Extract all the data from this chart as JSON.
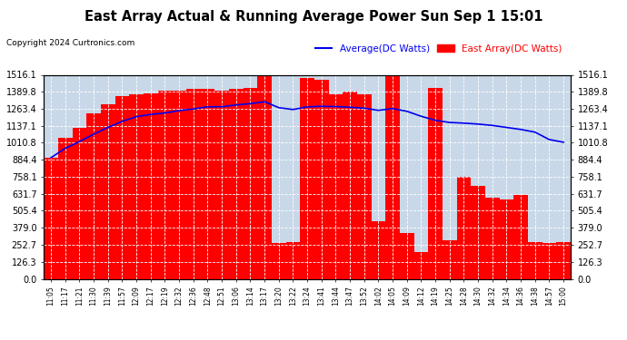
{
  "title": "East Array Actual & Running Average Power Sun Sep 1 15:01",
  "copyright": "Copyright 2024 Curtronics.com",
  "legend_avg": "Average(DC Watts)",
  "legend_east": "East Array(DC Watts)",
  "yticks": [
    0.0,
    126.3,
    252.7,
    379.0,
    505.4,
    631.7,
    758.1,
    884.4,
    1010.8,
    1137.1,
    1263.4,
    1389.8,
    1516.1
  ],
  "ymax": 1516.1,
  "bar_color": "#ff0000",
  "avg_color": "#0000ee",
  "bg_color": "#c8d8e8",
  "plot_bg": "#c8d8e8",
  "grid_color": "#ffffff",
  "title_color": "#000000",
  "copyright_color": "#000000",
  "legend_avg_color": "#0000ee",
  "legend_east_color": "#ff0000",
  "times": [
    "11:05",
    "11:17",
    "11:21",
    "11:30",
    "11:39",
    "11:57",
    "12:09",
    "12:17",
    "12:19",
    "12:32",
    "12:36",
    "12:48",
    "12:51",
    "13:06",
    "13:14",
    "13:17",
    "13:20",
    "13:22",
    "13:24",
    "13:41",
    "13:44",
    "13:47",
    "13:52",
    "14:02",
    "14:05",
    "14:09",
    "14:12",
    "14:19",
    "14:25",
    "14:28",
    "14:30",
    "14:32",
    "14:34",
    "14:36",
    "14:38",
    "14:57",
    "15:00"
  ],
  "bar_values": [
    900,
    1050,
    1120,
    1230,
    1300,
    1360,
    1370,
    1380,
    1395,
    1400,
    1410,
    1415,
    1395,
    1410,
    1420,
    1516,
    265,
    275,
    1490,
    1480,
    1370,
    1390,
    1370,
    430,
    1516,
    340,
    200,
    1420,
    285,
    760,
    690,
    600,
    590,
    625,
    270,
    265,
    270
  ],
  "avg_values": [
    900,
    970,
    1020,
    1075,
    1125,
    1170,
    1205,
    1222,
    1232,
    1250,
    1262,
    1278,
    1279,
    1292,
    1302,
    1316,
    1272,
    1258,
    1278,
    1282,
    1280,
    1275,
    1268,
    1252,
    1265,
    1245,
    1208,
    1178,
    1162,
    1157,
    1150,
    1140,
    1125,
    1110,
    1090,
    1035,
    1015
  ]
}
